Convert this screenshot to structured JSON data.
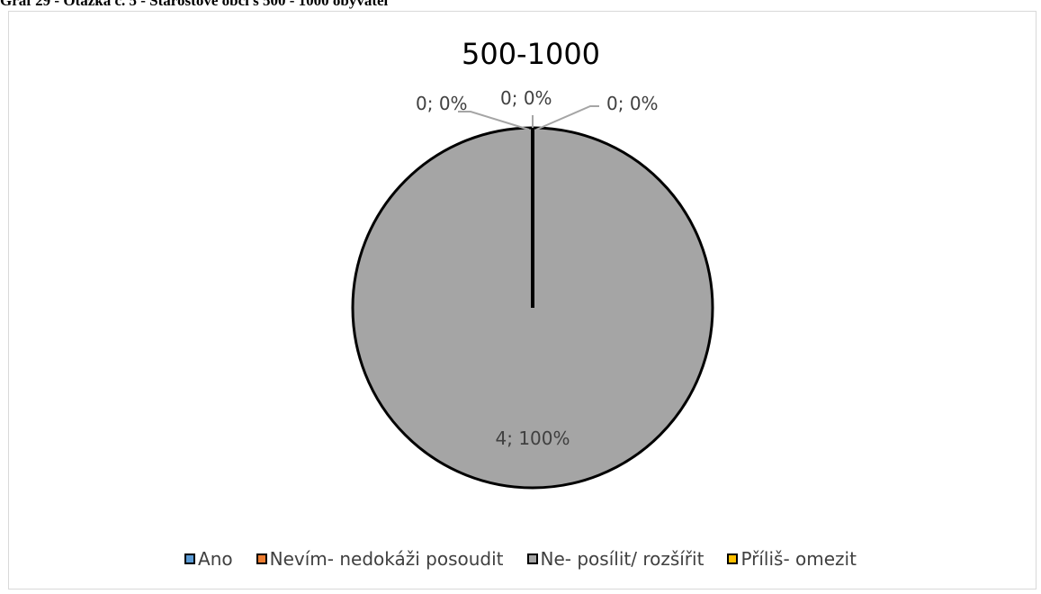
{
  "caption": "Graf 29 - Otázka č. 5 - Starostové obcí s 500 - 1000 obyvatel",
  "chart_data": {
    "type": "pie",
    "title": "500-1000",
    "categories": [
      "Ano",
      "Nevím- nedokáži posoudit",
      "Ne- posílit/ rozšířit",
      "Příliš- omezit"
    ],
    "values": [
      0,
      0,
      4,
      0
    ],
    "percentages": [
      0,
      0,
      100,
      0
    ],
    "colors": [
      "#5b9bd5",
      "#ed7d31",
      "#a5a5a5",
      "#ffc000"
    ],
    "data_labels": [
      "0; 0%",
      "0; 0%",
      "4; 100%",
      "0; 0%"
    ],
    "legend_position": "bottom"
  }
}
